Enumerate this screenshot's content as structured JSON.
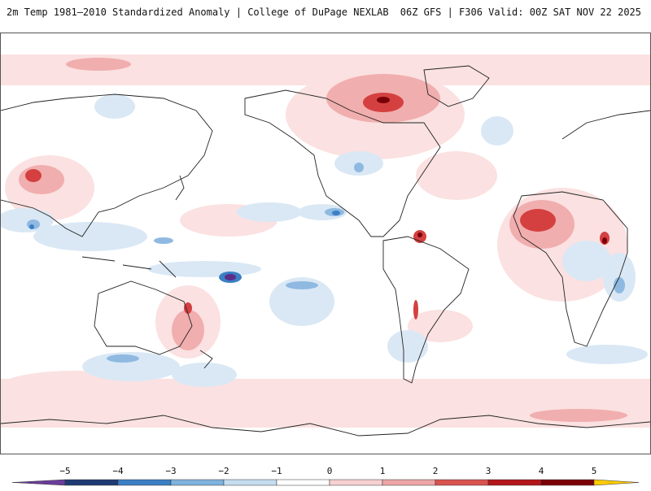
{
  "header": {
    "left_title": "2m Temp 1981–2010 Standardized Anomaly | College of DuPage NEXLAB",
    "right_title": "06Z GFS | F306 Valid: 00Z SAT NOV 22 2025"
  },
  "colorbar": {
    "labels": [
      "−5",
      "−4",
      "−3",
      "−2",
      "−1",
      "0",
      "1",
      "2",
      "3",
      "4",
      "5"
    ],
    "colors": [
      "#6a3d9a",
      "#1f3b73",
      "#3b7fc4",
      "#7fb2dd",
      "#c6dcef",
      "#ffffff",
      "#f6d1d1",
      "#eda5a5",
      "#d9534f",
      "#b3161b",
      "#7a0008",
      "#ffcc00"
    ]
  },
  "colors": {
    "warm_light": "#f9dcdc",
    "warm_mid": "#efa7a7",
    "warm_strong": "#cc2b2b",
    "warm_extreme": "#7a0008",
    "cool_light": "#d7e6f4",
    "cool_mid": "#9cc2e6",
    "cool_strong": "#3b7fc4",
    "cool_extreme": "#5a2d8a",
    "coastline": "#222222"
  }
}
